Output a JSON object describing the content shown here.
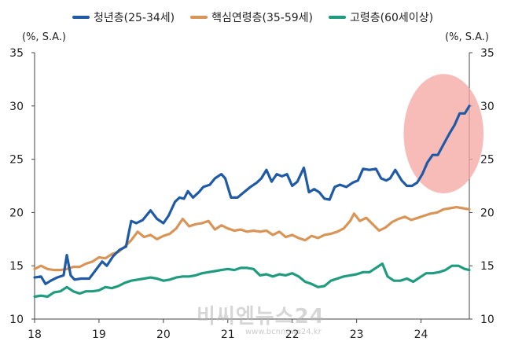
{
  "chart_data": {
    "type": "line",
    "unit_left": "(%, S.A.)",
    "unit_right": "(%, S.A.)",
    "ylim": [
      10,
      35
    ],
    "yticks": [
      10,
      15,
      20,
      25,
      30,
      35
    ],
    "x_range": [
      2018.0,
      2024.75
    ],
    "x_tick_labels": [
      {
        "label": "18",
        "x": 2018
      },
      {
        "label": "19",
        "x": 2019
      },
      {
        "label": "20",
        "x": 2020
      },
      {
        "label": "21",
        "x": 2021
      },
      {
        "label": "22",
        "x": 2022
      },
      {
        "label": "23",
        "x": 2023
      },
      {
        "label": "24",
        "x": 2024
      }
    ],
    "highlight": {
      "x": 2024.35,
      "y": 27.4,
      "rx": 0.62,
      "ry": 5.6,
      "color": "#f4a6a0"
    },
    "series": [
      {
        "name": "청년층(25-34세)",
        "color": "#1f5aa6",
        "points": [
          [
            2018.0,
            13.9
          ],
          [
            2018.1,
            14.0
          ],
          [
            2018.17,
            13.3
          ],
          [
            2018.25,
            13.6
          ],
          [
            2018.35,
            13.9
          ],
          [
            2018.45,
            14.1
          ],
          [
            2018.5,
            16.0
          ],
          [
            2018.56,
            14.1
          ],
          [
            2018.62,
            13.7
          ],
          [
            2018.72,
            13.8
          ],
          [
            2018.85,
            13.8
          ],
          [
            2018.95,
            14.6
          ],
          [
            2019.05,
            15.4
          ],
          [
            2019.12,
            15.0
          ],
          [
            2019.22,
            15.9
          ],
          [
            2019.32,
            16.5
          ],
          [
            2019.42,
            16.8
          ],
          [
            2019.5,
            19.2
          ],
          [
            2019.58,
            19.0
          ],
          [
            2019.68,
            19.3
          ],
          [
            2019.8,
            20.2
          ],
          [
            2019.9,
            19.4
          ],
          [
            2020.0,
            19.0
          ],
          [
            2020.08,
            19.7
          ],
          [
            2020.18,
            21.0
          ],
          [
            2020.25,
            21.4
          ],
          [
            2020.32,
            21.3
          ],
          [
            2020.38,
            22.0
          ],
          [
            2020.46,
            21.4
          ],
          [
            2020.55,
            21.9
          ],
          [
            2020.62,
            22.4
          ],
          [
            2020.72,
            22.6
          ],
          [
            2020.8,
            23.2
          ],
          [
            2020.9,
            23.6
          ],
          [
            2020.96,
            23.2
          ],
          [
            2021.05,
            21.4
          ],
          [
            2021.15,
            21.4
          ],
          [
            2021.25,
            21.9
          ],
          [
            2021.35,
            22.4
          ],
          [
            2021.45,
            22.8
          ],
          [
            2021.52,
            23.2
          ],
          [
            2021.6,
            24.0
          ],
          [
            2021.68,
            22.9
          ],
          [
            2021.76,
            23.6
          ],
          [
            2021.84,
            23.4
          ],
          [
            2021.92,
            23.6
          ],
          [
            2022.0,
            22.5
          ],
          [
            2022.08,
            22.9
          ],
          [
            2022.18,
            24.2
          ],
          [
            2022.26,
            21.9
          ],
          [
            2022.34,
            22.2
          ],
          [
            2022.42,
            21.9
          ],
          [
            2022.5,
            21.3
          ],
          [
            2022.58,
            21.2
          ],
          [
            2022.66,
            22.4
          ],
          [
            2022.74,
            22.6
          ],
          [
            2022.84,
            22.4
          ],
          [
            2022.94,
            22.8
          ],
          [
            2023.02,
            23.0
          ],
          [
            2023.1,
            24.1
          ],
          [
            2023.2,
            24.0
          ],
          [
            2023.3,
            24.1
          ],
          [
            2023.38,
            23.2
          ],
          [
            2023.46,
            23.0
          ],
          [
            2023.52,
            23.2
          ],
          [
            2023.6,
            24.0
          ],
          [
            2023.7,
            23.0
          ],
          [
            2023.78,
            22.5
          ],
          [
            2023.86,
            22.5
          ],
          [
            2023.94,
            22.8
          ],
          [
            2024.02,
            23.6
          ],
          [
            2024.1,
            24.7
          ],
          [
            2024.18,
            25.4
          ],
          [
            2024.26,
            25.4
          ],
          [
            2024.35,
            26.4
          ],
          [
            2024.44,
            27.4
          ],
          [
            2024.52,
            28.2
          ],
          [
            2024.6,
            29.3
          ],
          [
            2024.68,
            29.3
          ],
          [
            2024.75,
            30.0
          ]
        ]
      },
      {
        "name": "핵심연령층(35-59세)",
        "color": "#d99457",
        "points": [
          [
            2018.0,
            14.7
          ],
          [
            2018.1,
            15.0
          ],
          [
            2018.2,
            14.7
          ],
          [
            2018.3,
            14.6
          ],
          [
            2018.4,
            14.6
          ],
          [
            2018.5,
            14.7
          ],
          [
            2018.6,
            14.9
          ],
          [
            2018.7,
            14.9
          ],
          [
            2018.8,
            15.2
          ],
          [
            2018.9,
            15.4
          ],
          [
            2019.0,
            15.8
          ],
          [
            2019.1,
            15.7
          ],
          [
            2019.2,
            16.1
          ],
          [
            2019.3,
            16.3
          ],
          [
            2019.4,
            16.8
          ],
          [
            2019.5,
            17.4
          ],
          [
            2019.6,
            18.2
          ],
          [
            2019.7,
            17.7
          ],
          [
            2019.8,
            17.9
          ],
          [
            2019.9,
            17.5
          ],
          [
            2020.0,
            17.8
          ],
          [
            2020.1,
            18.0
          ],
          [
            2020.2,
            18.5
          ],
          [
            2020.3,
            19.4
          ],
          [
            2020.4,
            18.7
          ],
          [
            2020.5,
            18.9
          ],
          [
            2020.6,
            19.0
          ],
          [
            2020.7,
            19.2
          ],
          [
            2020.8,
            18.4
          ],
          [
            2020.9,
            18.8
          ],
          [
            2021.0,
            18.5
          ],
          [
            2021.1,
            18.3
          ],
          [
            2021.2,
            18.4
          ],
          [
            2021.3,
            18.2
          ],
          [
            2021.4,
            18.3
          ],
          [
            2021.5,
            18.2
          ],
          [
            2021.6,
            18.3
          ],
          [
            2021.7,
            17.9
          ],
          [
            2021.8,
            18.2
          ],
          [
            2021.9,
            17.7
          ],
          [
            2022.0,
            17.9
          ],
          [
            2022.1,
            17.6
          ],
          [
            2022.2,
            17.4
          ],
          [
            2022.3,
            17.8
          ],
          [
            2022.4,
            17.6
          ],
          [
            2022.5,
            17.9
          ],
          [
            2022.6,
            18.0
          ],
          [
            2022.7,
            18.2
          ],
          [
            2022.8,
            18.5
          ],
          [
            2022.9,
            19.2
          ],
          [
            2022.96,
            19.9
          ],
          [
            2023.05,
            19.2
          ],
          [
            2023.15,
            19.5
          ],
          [
            2023.25,
            18.9
          ],
          [
            2023.35,
            18.3
          ],
          [
            2023.45,
            18.6
          ],
          [
            2023.55,
            19.1
          ],
          [
            2023.65,
            19.4
          ],
          [
            2023.75,
            19.6
          ],
          [
            2023.85,
            19.3
          ],
          [
            2023.95,
            19.5
          ],
          [
            2024.05,
            19.7
          ],
          [
            2024.15,
            19.9
          ],
          [
            2024.25,
            20.0
          ],
          [
            2024.35,
            20.3
          ],
          [
            2024.45,
            20.4
          ],
          [
            2024.55,
            20.5
          ],
          [
            2024.65,
            20.4
          ],
          [
            2024.75,
            20.3
          ]
        ]
      },
      {
        "name": "고령층(60세이상)",
        "color": "#1f9c80",
        "points": [
          [
            2018.0,
            12.1
          ],
          [
            2018.1,
            12.2
          ],
          [
            2018.2,
            12.1
          ],
          [
            2018.3,
            12.5
          ],
          [
            2018.4,
            12.6
          ],
          [
            2018.5,
            13.0
          ],
          [
            2018.6,
            12.6
          ],
          [
            2018.7,
            12.4
          ],
          [
            2018.8,
            12.6
          ],
          [
            2018.9,
            12.6
          ],
          [
            2019.0,
            12.7
          ],
          [
            2019.1,
            13.0
          ],
          [
            2019.2,
            12.9
          ],
          [
            2019.3,
            13.1
          ],
          [
            2019.4,
            13.4
          ],
          [
            2019.5,
            13.6
          ],
          [
            2019.6,
            13.7
          ],
          [
            2019.7,
            13.8
          ],
          [
            2019.8,
            13.9
          ],
          [
            2019.9,
            13.8
          ],
          [
            2020.0,
            13.6
          ],
          [
            2020.1,
            13.7
          ],
          [
            2020.2,
            13.9
          ],
          [
            2020.3,
            14.0
          ],
          [
            2020.4,
            14.0
          ],
          [
            2020.5,
            14.1
          ],
          [
            2020.6,
            14.3
          ],
          [
            2020.7,
            14.4
          ],
          [
            2020.8,
            14.5
          ],
          [
            2020.9,
            14.6
          ],
          [
            2021.0,
            14.7
          ],
          [
            2021.1,
            14.6
          ],
          [
            2021.2,
            14.8
          ],
          [
            2021.3,
            14.8
          ],
          [
            2021.4,
            14.7
          ],
          [
            2021.5,
            14.1
          ],
          [
            2021.6,
            14.2
          ],
          [
            2021.7,
            14.0
          ],
          [
            2021.8,
            14.2
          ],
          [
            2021.9,
            14.1
          ],
          [
            2022.0,
            14.3
          ],
          [
            2022.1,
            14.0
          ],
          [
            2022.2,
            13.5
          ],
          [
            2022.3,
            13.3
          ],
          [
            2022.4,
            13.0
          ],
          [
            2022.5,
            13.1
          ],
          [
            2022.6,
            13.6
          ],
          [
            2022.7,
            13.8
          ],
          [
            2022.8,
            14.0
          ],
          [
            2022.9,
            14.1
          ],
          [
            2023.0,
            14.2
          ],
          [
            2023.1,
            14.4
          ],
          [
            2023.2,
            14.4
          ],
          [
            2023.3,
            14.8
          ],
          [
            2023.4,
            15.2
          ],
          [
            2023.48,
            14.0
          ],
          [
            2023.58,
            13.6
          ],
          [
            2023.68,
            13.6
          ],
          [
            2023.78,
            13.8
          ],
          [
            2023.88,
            13.5
          ],
          [
            2023.98,
            13.9
          ],
          [
            2024.08,
            14.3
          ],
          [
            2024.18,
            14.3
          ],
          [
            2024.28,
            14.4
          ],
          [
            2024.38,
            14.6
          ],
          [
            2024.48,
            15.0
          ],
          [
            2024.58,
            15.0
          ],
          [
            2024.68,
            14.7
          ],
          [
            2024.75,
            14.6
          ]
        ]
      }
    ]
  },
  "watermark": {
    "main": "비씨엔뉴스24",
    "sub": "www.bcnnews24.kr"
  }
}
